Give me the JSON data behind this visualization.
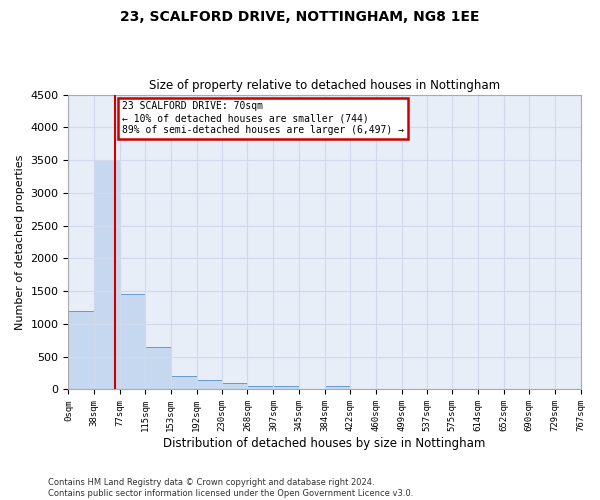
{
  "title1": "23, SCALFORD DRIVE, NOTTINGHAM, NG8 1EE",
  "title2": "Size of property relative to detached houses in Nottingham",
  "xlabel": "Distribution of detached houses by size in Nottingham",
  "ylabel": "Number of detached properties",
  "annotation_line1": "23 SCALFORD DRIVE: 70sqm",
  "annotation_line2": "← 10% of detached houses are smaller (744)",
  "annotation_line3": "89% of semi-detached houses are larger (6,497) →",
  "footer1": "Contains HM Land Registry data © Crown copyright and database right 2024.",
  "footer2": "Contains public sector information licensed under the Open Government Licence v3.0.",
  "property_size": 70,
  "bin_edges": [
    0,
    38,
    77,
    115,
    153,
    192,
    230,
    268,
    307,
    345,
    384,
    422,
    460,
    499,
    537,
    575,
    614,
    652,
    690,
    729,
    767
  ],
  "bar_heights": [
    1200,
    3500,
    1450,
    650,
    200,
    150,
    100,
    50,
    50,
    0,
    50,
    0,
    0,
    0,
    0,
    0,
    0,
    0,
    0,
    0
  ],
  "bar_color": "#c5d8ef",
  "bar_edge_color": "#6699cc",
  "annotation_box_color": "#cc0000",
  "red_line_color": "#cc0000",
  "grid_color": "#d0daea",
  "background_color": "#e8eef8",
  "ylim": [
    0,
    4500
  ],
  "yticks": [
    0,
    500,
    1000,
    1500,
    2000,
    2500,
    3000,
    3500,
    4000,
    4500
  ]
}
